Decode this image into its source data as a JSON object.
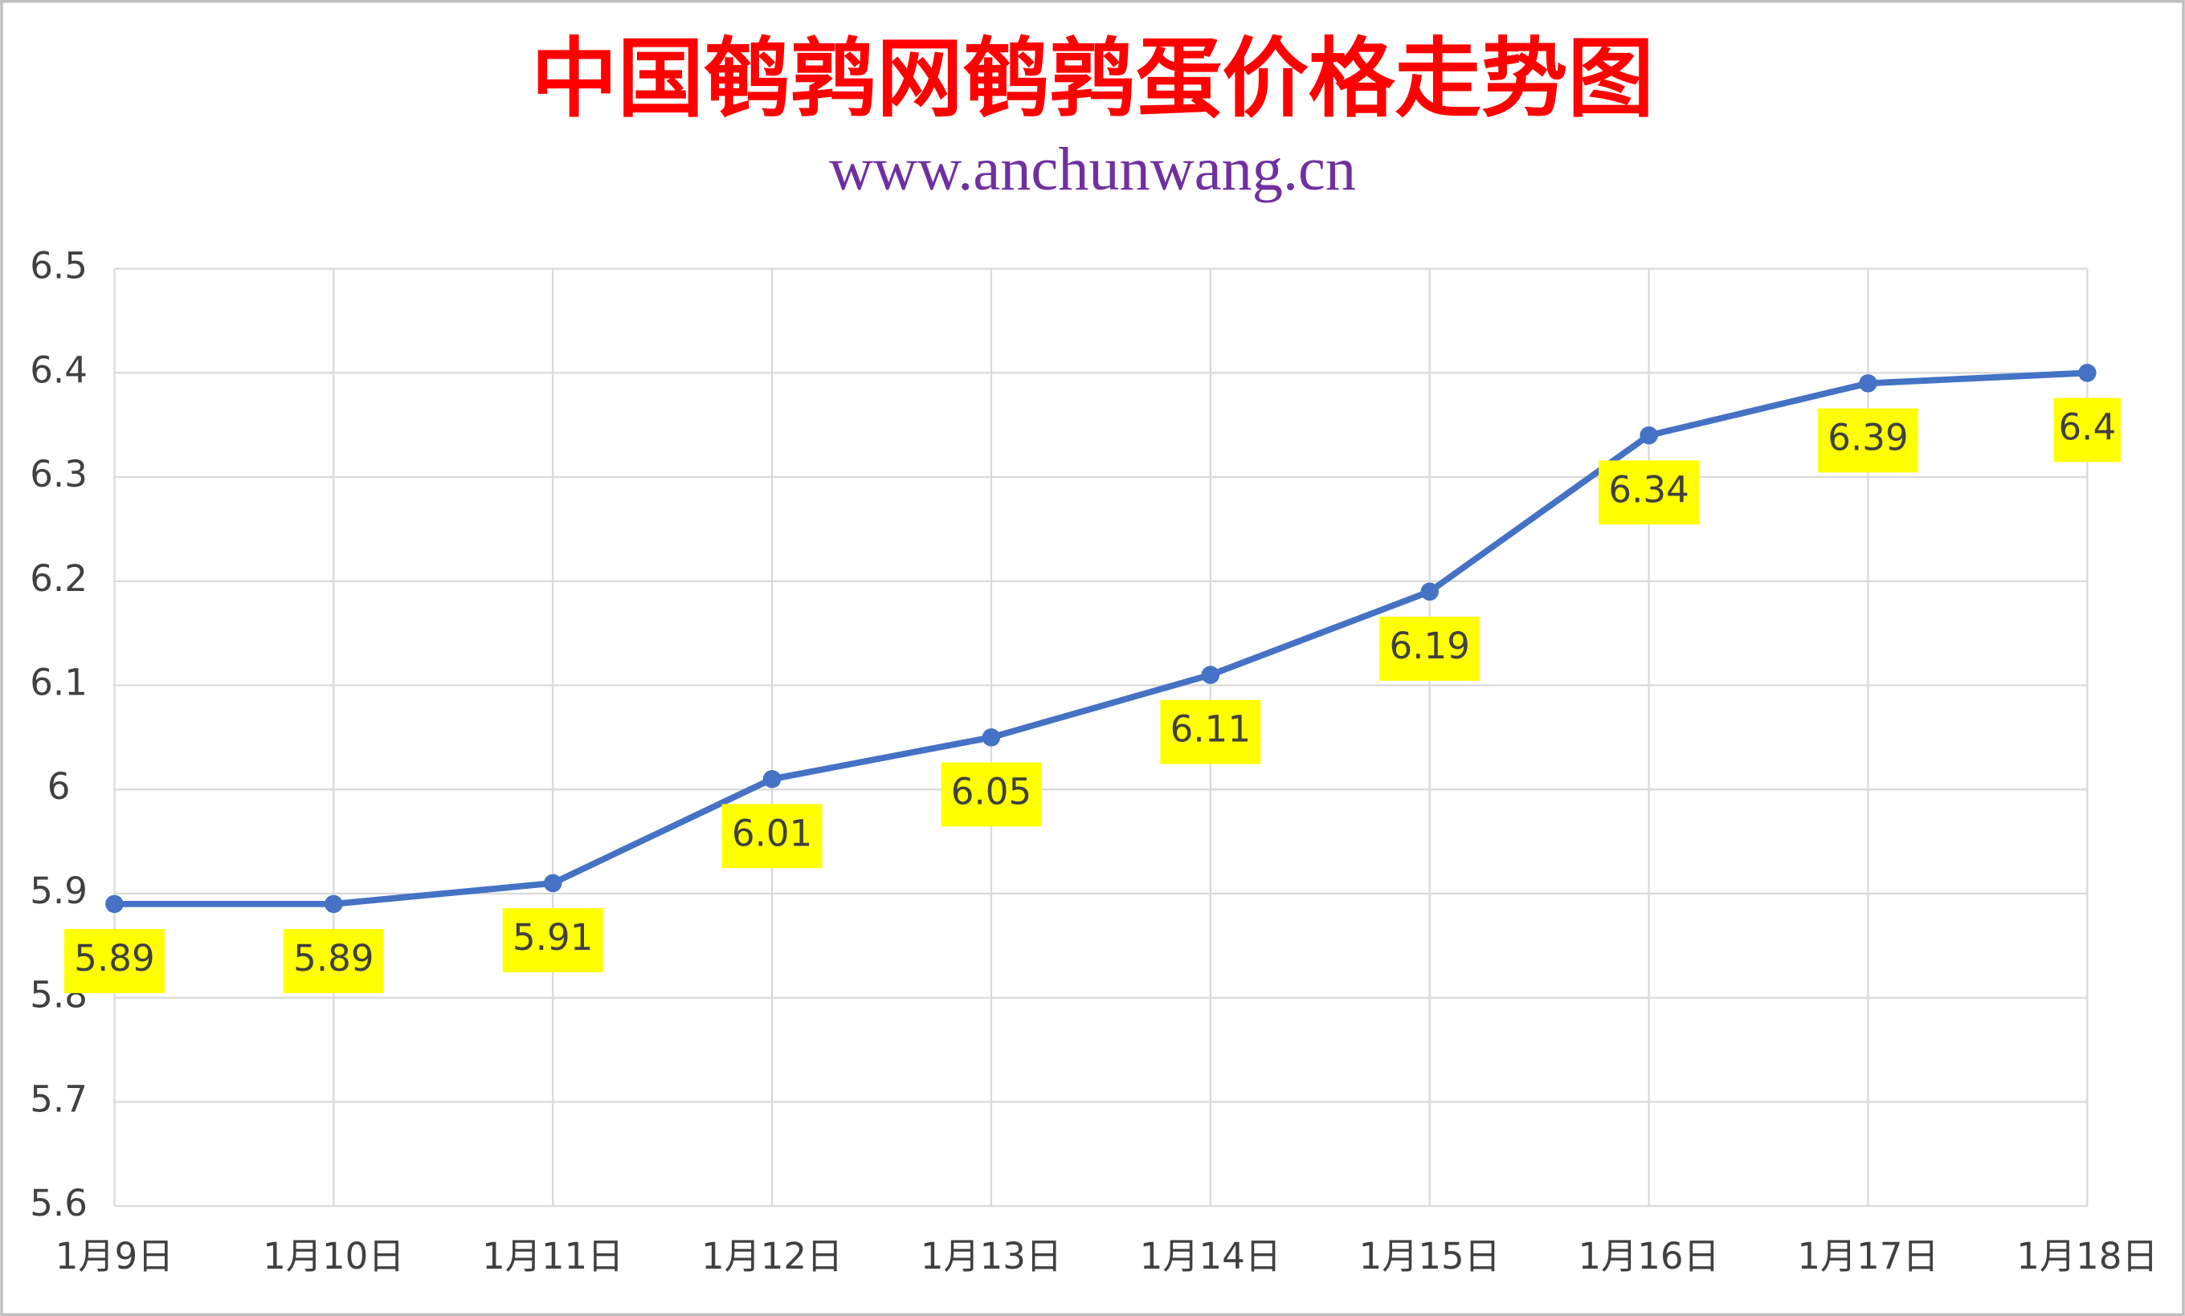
{
  "chart_data": {
    "type": "line",
    "title": "中国鹌鹑网鹌鹑蛋价格走势图",
    "subtitle": "www.anchunwang.cn",
    "categories": [
      "1月9日",
      "1月10日",
      "1月11日",
      "1月12日",
      "1月13日",
      "1月14日",
      "1月15日",
      "1月16日",
      "1月17日",
      "1月18日"
    ],
    "values": [
      5.89,
      5.89,
      5.91,
      6.01,
      6.05,
      6.11,
      6.19,
      6.34,
      6.39,
      6.4
    ],
    "color": "#4472c4",
    "label_color": "#ffff00",
    "ylim": [
      5.6,
      6.5
    ],
    "yticks": [
      5.6,
      5.7,
      5.8,
      5.9,
      6,
      6.1,
      6.2,
      6.3,
      6.4,
      6.5
    ],
    "grid": true
  }
}
